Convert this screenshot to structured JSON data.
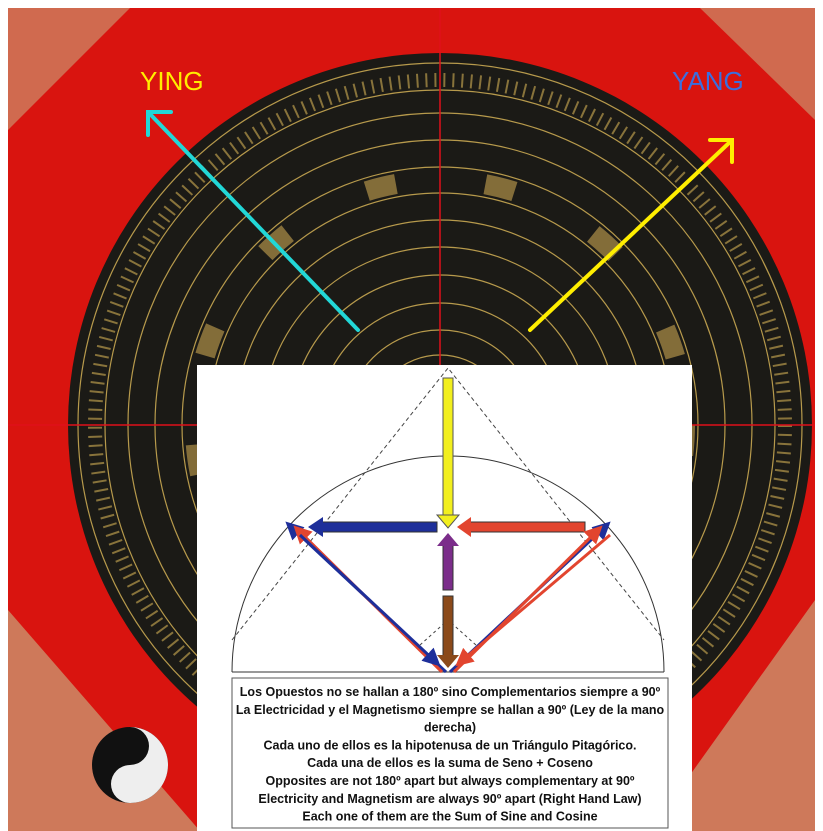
{
  "labels": {
    "ying": "YING",
    "yang": "YANG"
  },
  "caption": {
    "lines": [
      "Los Opuestos no se hallan a 180º sino Complementarios siempre a 90º",
      "La Electricidad y el Magnetismo siempre se hallan a 90º (Ley de la mano",
      "derecha)",
      "Cada uno de ellos es la hipotenusa de un Triángulo Pitagórico.",
      "Cada una de ellos es la suma de Seno + Coseno",
      "Opposites are not 180º apart but always complementary at 90º",
      "Electricity and Magnetism are always 90º apart (Right Hand Law)",
      "Each one of them are the Sum of Sine and Cosine"
    ]
  }
}
